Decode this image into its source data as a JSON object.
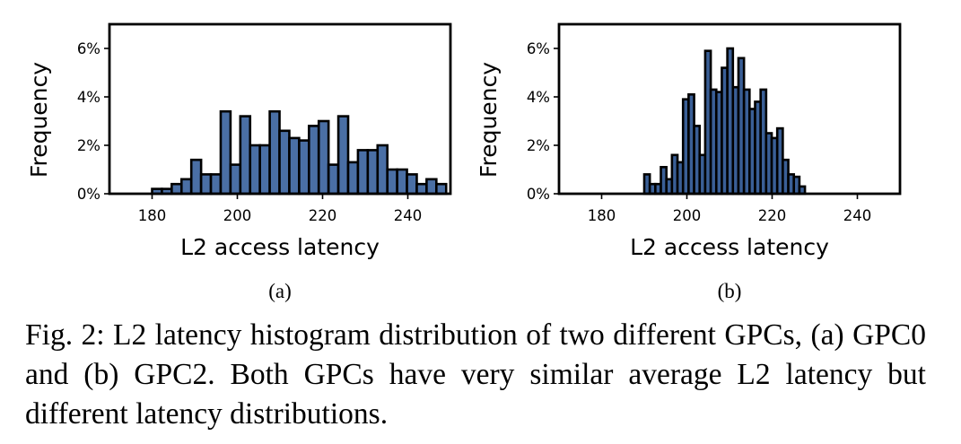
{
  "chart_data": [
    {
      "type": "bar",
      "label": "(a)",
      "xlabel": "L2 access latency",
      "ylabel": "Frequency",
      "xlim": [
        170,
        250
      ],
      "ylim": [
        0,
        7
      ],
      "xticks": [
        180,
        200,
        220,
        240
      ],
      "yticks": [
        0,
        2,
        4,
        6
      ],
      "ytick_labels": [
        "0%",
        "2%",
        "4%",
        "6%"
      ],
      "bar_color": "#4a6fa5",
      "edge_color": "#000000",
      "bin_edges": [
        180,
        182.3,
        184.6,
        186.9,
        189.2,
        191.5,
        193.8,
        196.1,
        198.4,
        200.7,
        203,
        205.3,
        207.6,
        209.9,
        212.2,
        214.5,
        216.8,
        219.1,
        221.4,
        223.7,
        226,
        228.3,
        230.6,
        232.9,
        235.2,
        237.5,
        239.8,
        242.1,
        244.4,
        246.7,
        249
      ],
      "values": [
        0.2,
        0.2,
        0.4,
        0.6,
        1.4,
        0.8,
        0.8,
        3.4,
        1.2,
        3.2,
        2.0,
        2.0,
        3.4,
        2.6,
        2.3,
        2.2,
        2.8,
        3.0,
        1.2,
        3.2,
        1.3,
        1.8,
        1.8,
        2.0,
        1.0,
        1.0,
        0.8,
        0.4,
        0.6,
        0.4
      ]
    },
    {
      "type": "bar",
      "label": "(b)",
      "xlabel": "L2 access latency",
      "ylabel": "Frequency",
      "xlim": [
        170,
        250
      ],
      "ylim": [
        0,
        7
      ],
      "xticks": [
        180,
        200,
        220,
        240
      ],
      "yticks": [
        0,
        2,
        4,
        6
      ],
      "ytick_labels": [
        "0%",
        "2%",
        "4%",
        "6%"
      ],
      "bar_color": "#3a5f96",
      "edge_color": "#000000",
      "bin_edges": [
        190,
        191.3,
        192.6,
        193.9,
        195.2,
        196.5,
        197.8,
        199.1,
        200.4,
        201.7,
        203,
        204.3,
        205.6,
        206.9,
        208.2,
        209.5,
        210.8,
        212.1,
        213.4,
        214.7,
        216,
        217.3,
        218.6,
        219.9,
        221.2,
        222.5,
        223.8,
        225.1,
        226.4,
        227.7
      ],
      "values": [
        0.8,
        0.4,
        0.4,
        1.1,
        0.6,
        1.6,
        1.3,
        3.9,
        4.1,
        2.8,
        1.6,
        5.9,
        4.3,
        4.2,
        5.2,
        6.0,
        4.4,
        5.6,
        4.3,
        3.5,
        3.8,
        4.3,
        2.5,
        2.3,
        2.7,
        1.4,
        0.8,
        0.7,
        0.3
      ]
    }
  ],
  "caption": "Fig. 2: L2 latency histogram distribution of two different GPCs, (a) GPC0 and (b) GPC2. Both GPCs have very similar average L2 latency but different latency distributions."
}
